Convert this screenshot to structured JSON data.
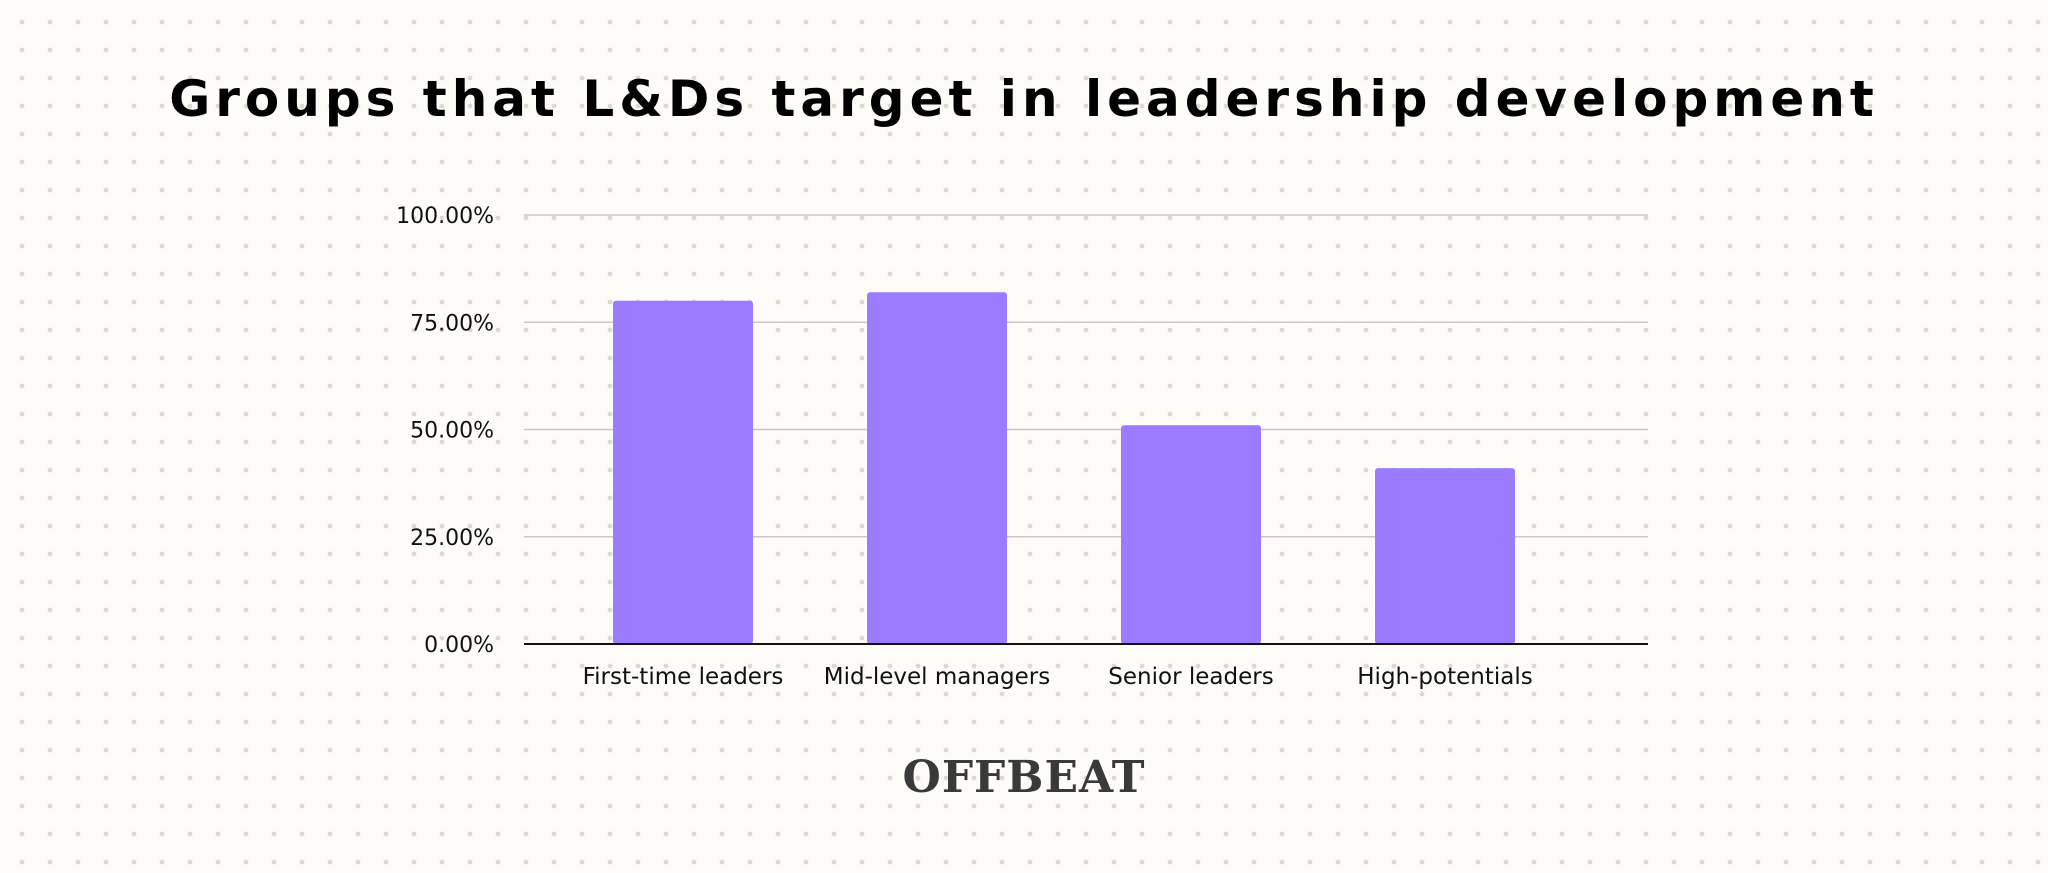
{
  "chart_data": {
    "type": "bar",
    "title": "Groups that L&Ds target in leadership development",
    "categories": [
      "First-time leaders",
      "Mid-level managers",
      "Senior leaders",
      "High-potentials"
    ],
    "values": [
      80,
      82,
      51,
      41
    ],
    "ylim": [
      0,
      100
    ],
    "yticks": [
      0,
      25,
      50,
      75,
      100
    ],
    "ytick_labels": [
      "0.00%",
      "25.00%",
      "50.00%",
      "75.00%",
      "100.00%"
    ],
    "xlabel": "",
    "ylabel": "",
    "grid": true,
    "legend": "none",
    "bar_color": "#9b7bff",
    "gridline_color": "#c8c8c8",
    "axis_color": "#111111"
  },
  "brand": {
    "name": "OFFBEAT"
  }
}
